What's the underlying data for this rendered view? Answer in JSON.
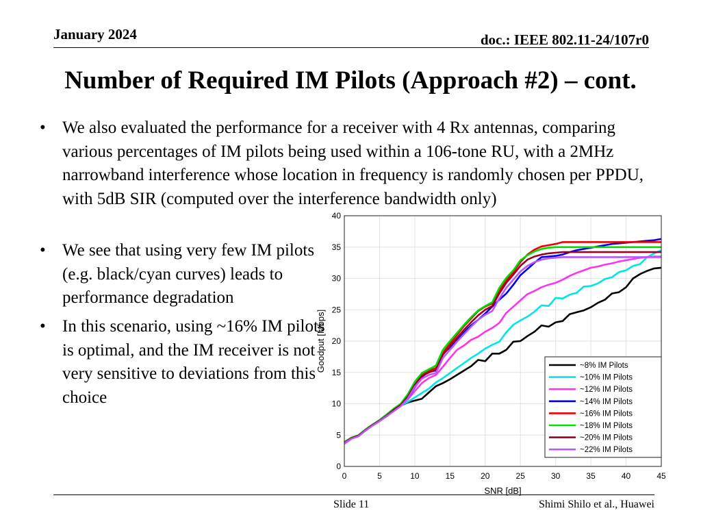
{
  "header": {
    "date": "January 2024",
    "doc": "doc.: IEEE 802.11-24/107r0"
  },
  "title": "Number of Required IM Pilots (Approach #2) – cont.",
  "bullet_symbol": "•",
  "bullets": [
    "We also evaluated the performance for a receiver with 4 Rx antennas, comparing various percentages of IM pilots being used within a 106-tone RU, with a 2MHz narrowband interference whose location in frequency is randomly chosen per PPDU, with 5dB SIR (computed over the interference bandwidth only)",
    "We see that using very few IM pilots (e.g. black/cyan curves) leads to performance degradation",
    "In this scenario, using ~16% IM pilots is optimal, and the IM receiver is not very sensitive to deviations from this choice"
  ],
  "footer": {
    "slide": "Slide 11",
    "author": "Shimi Shilo et al., Huawei"
  },
  "chart_data": {
    "type": "line",
    "title": "",
    "xlabel": "SNR [dB]",
    "ylabel": "Goodput [Mbps]",
    "xlim": [
      0,
      45
    ],
    "ylim": [
      0,
      40
    ],
    "xticks": [
      0,
      5,
      10,
      15,
      20,
      25,
      30,
      35,
      40,
      45
    ],
    "yticks": [
      0,
      5,
      10,
      15,
      20,
      25,
      30,
      35,
      40
    ],
    "grid": true,
    "legend_position": "bottom-right",
    "x": [
      0,
      1,
      2,
      3,
      4,
      5,
      6,
      7,
      8,
      9,
      10,
      11,
      12,
      13,
      14,
      15,
      16,
      17,
      18,
      19,
      20,
      21,
      22,
      23,
      24,
      25,
      26,
      27,
      28,
      29,
      30,
      31,
      32,
      33,
      34,
      35,
      36,
      37,
      38,
      39,
      40,
      41,
      42,
      43,
      44,
      45
    ],
    "series": [
      {
        "name": "~8% IM Pilots",
        "color": "#000000",
        "values": [
          3.8,
          4.5,
          4.9,
          5.8,
          6.6,
          7.3,
          8.0,
          8.9,
          9.7,
          10.2,
          10.5,
          10.8,
          11.8,
          12.8,
          13.3,
          13.9,
          14.6,
          15.3,
          16.0,
          17.0,
          16.8,
          18.0,
          18.0,
          18.6,
          19.9,
          20.0,
          20.8,
          21.5,
          22.5,
          22.3,
          23.0,
          23.2,
          24.3,
          24.6,
          24.9,
          25.4,
          26.1,
          26.6,
          27.6,
          27.8,
          28.6,
          30.0,
          30.7,
          31.2,
          31.6,
          31.7
        ]
      },
      {
        "name": "~10% IM Pilots",
        "color": "#00e5e5",
        "values": [
          3.8,
          4.5,
          4.9,
          5.8,
          6.6,
          7.3,
          8.0,
          8.9,
          9.7,
          10.3,
          11.0,
          11.7,
          12.4,
          13.4,
          14.1,
          14.9,
          15.7,
          16.5,
          17.3,
          18.0,
          18.8,
          19.4,
          19.9,
          21.4,
          22.6,
          23.3,
          23.9,
          24.7,
          25.7,
          25.6,
          26.9,
          26.8,
          27.4,
          27.7,
          28.7,
          28.8,
          29.2,
          29.9,
          30.2,
          31.0,
          31.3,
          32.0,
          32.3,
          33.4,
          34.0,
          34.5
        ]
      },
      {
        "name": "~12% IM Pilots",
        "color": "#ff33ee",
        "values": [
          3.6,
          4.4,
          4.9,
          5.8,
          6.6,
          7.4,
          8.2,
          9.1,
          9.9,
          10.7,
          12.0,
          13.3,
          14.1,
          14.6,
          15.9,
          17.3,
          18.6,
          19.3,
          20.2,
          20.7,
          21.5,
          22.1,
          22.9,
          24.5,
          25.5,
          26.5,
          27.5,
          28.0,
          28.6,
          29.0,
          29.3,
          29.8,
          30.4,
          30.9,
          31.3,
          31.7,
          31.9,
          32.2,
          32.4,
          32.7,
          32.9,
          33.1,
          33.3,
          33.4,
          33.5,
          33.5
        ]
      },
      {
        "name": "~14% IM Pilots",
        "color": "#0000ee",
        "values": [
          3.8,
          4.5,
          4.9,
          5.8,
          6.6,
          7.3,
          8.0,
          8.9,
          9.7,
          10.8,
          12.6,
          14.3,
          15.1,
          15.3,
          17.9,
          19.0,
          20.2,
          21.4,
          22.5,
          23.4,
          24.4,
          25.5,
          26.6,
          27.6,
          29.0,
          30.5,
          31.5,
          32.5,
          33.4,
          33.5,
          33.6,
          33.8,
          34.2,
          34.5,
          34.7,
          34.9,
          35.1,
          35.3,
          35.5,
          35.6,
          35.7,
          35.8,
          35.9,
          36.0,
          36.1,
          36.3
        ]
      },
      {
        "name": "~16% IM Pilots",
        "color": "#ee0000",
        "values": [
          3.8,
          4.5,
          4.9,
          5.8,
          6.6,
          7.3,
          8.1,
          9.0,
          9.9,
          11.3,
          13.3,
          14.7,
          15.3,
          15.7,
          18.1,
          19.6,
          21.0,
          22.4,
          23.6,
          24.8,
          25.5,
          26.0,
          28.1,
          29.7,
          31.0,
          32.6,
          33.8,
          34.6,
          35.1,
          35.3,
          35.5,
          35.8,
          35.8,
          35.8,
          35.8,
          35.8,
          35.8,
          35.8,
          35.8,
          35.8,
          35.8,
          35.8,
          35.8,
          35.8,
          35.8,
          35.8
        ]
      },
      {
        "name": "~18% IM Pilots",
        "color": "#00dd00",
        "values": [
          3.9,
          4.6,
          5.0,
          5.9,
          6.7,
          7.4,
          8.3,
          9.2,
          10.0,
          11.5,
          13.5,
          14.9,
          15.5,
          16.1,
          18.6,
          20.0,
          21.3,
          22.6,
          23.8,
          24.9,
          25.6,
          26.2,
          28.5,
          30.1,
          31.3,
          32.9,
          33.7,
          34.3,
          34.7,
          34.9,
          35.0,
          35.0,
          35.0,
          35.0,
          35.0,
          35.0,
          35.0,
          35.0,
          35.0,
          35.0,
          35.0,
          35.0,
          35.0,
          35.0,
          35.0,
          35.0
        ]
      },
      {
        "name": "~20% IM Pilots",
        "color": "#990022",
        "values": [
          3.8,
          4.5,
          4.9,
          5.8,
          6.6,
          7.3,
          8.1,
          9.0,
          9.8,
          11.1,
          13.0,
          14.4,
          15.0,
          15.4,
          17.8,
          19.2,
          20.5,
          21.8,
          23.0,
          24.1,
          25.0,
          25.6,
          27.6,
          29.3,
          30.6,
          32.0,
          33.0,
          33.5,
          33.8,
          34.0,
          34.1,
          34.2,
          34.2,
          34.2,
          34.2,
          34.2,
          34.2,
          34.2,
          34.2,
          34.2,
          34.2,
          34.2,
          34.2,
          34.2,
          34.2,
          34.2
        ]
      },
      {
        "name": "~22% IM Pilots",
        "color": "#bb55ff",
        "values": [
          3.7,
          4.4,
          4.8,
          5.7,
          6.5,
          7.2,
          8.0,
          8.8,
          9.6,
          10.8,
          12.7,
          14.0,
          14.6,
          14.9,
          17.3,
          18.6,
          19.9,
          21.1,
          22.3,
          23.4,
          24.2,
          24.8,
          26.8,
          28.5,
          29.8,
          31.1,
          32.0,
          32.6,
          33.0,
          33.2,
          33.3,
          33.4,
          33.4,
          33.4,
          33.4,
          33.4,
          33.4,
          33.4,
          33.4,
          33.4,
          33.4,
          33.4,
          33.4,
          33.4,
          33.4,
          33.4
        ]
      }
    ]
  }
}
